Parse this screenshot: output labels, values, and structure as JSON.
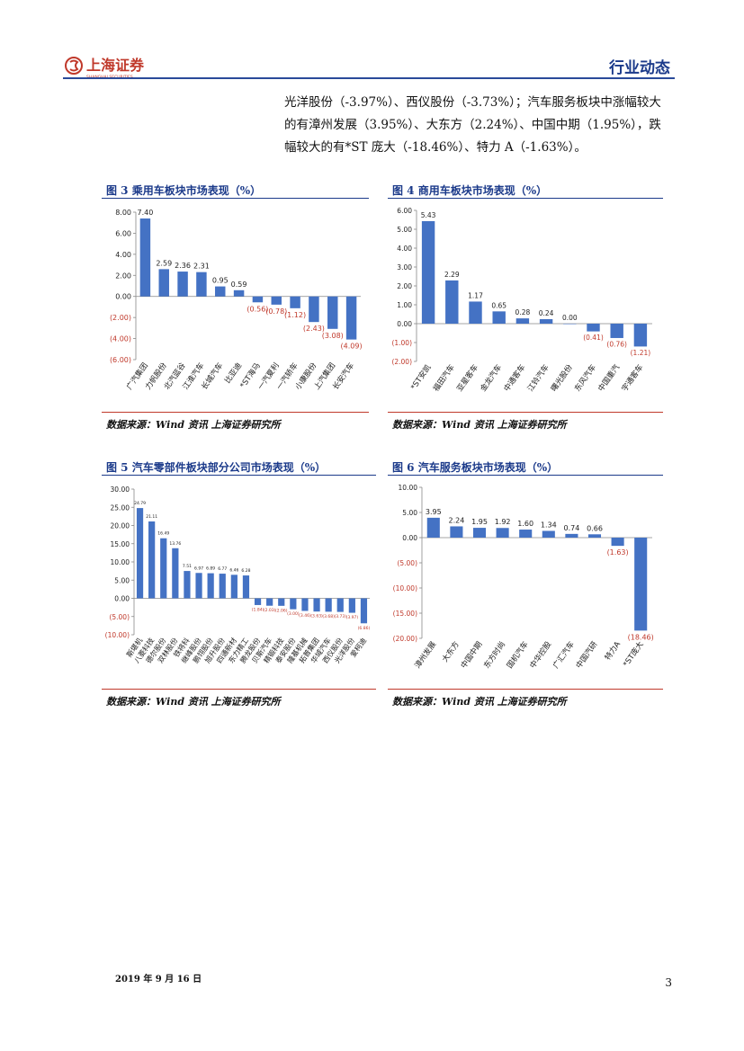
{
  "header": {
    "title": "行业动态",
    "logo_text": "上海证券",
    "logo_sub": "SHANGHAI SECURITIES"
  },
  "intro": {
    "lines": [
      "光洋股份（-3.97%）、西仪股份（-3.73%）；汽车服务板块中涨幅较大",
      "的有漳州发展（3.95%）、大东方（2.24%）、中国中期（1.95%），跌",
      "幅较大的有*ST 庞大（-18.46%）、特力 A（-1.63%）。"
    ]
  },
  "colors": {
    "bar": "#4472c4",
    "negative_label": "#c0392b",
    "title": "#1b3a8a"
  },
  "chart_data": [
    {
      "type": "bar",
      "title": "图 3 乘用车板块市场表现（%）",
      "source": "数据来源：Wind 资讯 上海证券研究所",
      "categories": [
        "广汽集团",
        "力帆股份",
        "北汽蓝谷",
        "江淮汽车",
        "长城汽车",
        "比亚迪",
        "*ST海马",
        "一汽夏利",
        "一汽轿车",
        "小康股份",
        "上汽集团",
        "长安汽车"
      ],
      "values": [
        7.4,
        2.59,
        2.36,
        2.31,
        0.95,
        0.59,
        -0.56,
        -0.78,
        -1.12,
        -2.43,
        -3.08,
        -4.09
      ],
      "value_labels": [
        "7.40",
        "2.59",
        "2.36",
        "2.31",
        "0.95",
        "0.59",
        "(0.56)",
        "(0.78)",
        "(1.12)",
        "(2.43)",
        "(3.08)",
        "(4.09)"
      ],
      "ylim": [
        -6,
        8
      ],
      "yticks": [
        8,
        6,
        4,
        2,
        0,
        -2,
        -4,
        -6
      ],
      "ytick_labels": [
        "8.00",
        "6.00",
        "4.00",
        "2.00",
        "0.00",
        "(2.00)",
        "(4.00)",
        "(6.00)"
      ]
    },
    {
      "type": "bar",
      "title": "图 4 商用车板块市场表现（%）",
      "source": "数据来源：Wind 资讯 上海证券研究所",
      "categories": [
        "*ST安凯",
        "福田汽车",
        "亚星客车",
        "金龙汽车",
        "中通客车",
        "江铃汽车",
        "曙光股份",
        "东风汽车",
        "中国重汽",
        "宇通客车"
      ],
      "values": [
        5.43,
        2.29,
        1.17,
        0.65,
        0.28,
        0.24,
        0.0,
        -0.41,
        -0.76,
        -1.21
      ],
      "value_labels": [
        "5.43",
        "2.29",
        "1.17",
        "0.65",
        "0.28",
        "0.24",
        "0.00",
        "(0.41)",
        "(0.76)",
        "(1.21)"
      ],
      "ylim": [
        -2,
        6
      ],
      "yticks": [
        6,
        5,
        4,
        3,
        2,
        1,
        0,
        -1,
        -2
      ],
      "ytick_labels": [
        "6.00",
        "5.00",
        "4.00",
        "3.00",
        "2.00",
        "1.00",
        "0.00",
        "(1.00)",
        "(2.00)"
      ]
    },
    {
      "type": "bar",
      "title": "图 5 汽车零部件板块部分公司市场表现（%）",
      "source": "数据来源：Wind 资讯 上海证券研究所",
      "categories": [
        "斯堪机",
        "八菱科技",
        "德尔股份",
        "双林股份",
        "铁将科",
        "继峰股份",
        "鹏翎股份",
        "旭升股份",
        "四通新材",
        "东力精工",
        "腾龙股份",
        "贝斯汽车",
        "精锻科技",
        "泰安股份",
        "隆基机械",
        "拓普集团",
        "华域汽车",
        "西仪股份",
        "光洋股份",
        "爱柯迪"
      ],
      "values": [
        24.79,
        21.11,
        16.49,
        13.76,
        7.51,
        6.97,
        6.89,
        6.77,
        6.46,
        6.28,
        -1.84,
        -2.03,
        -2.06,
        -3.0,
        -3.46,
        -3.63,
        -3.68,
        -3.73,
        -3.97,
        -6.86
      ],
      "value_labels": [
        "24.79",
        "21.11",
        "16.49",
        "13.76",
        "7.51",
        "6.97",
        "6.89",
        "6.77",
        "6.46",
        "6.28",
        "(1.84)",
        "(2.03)",
        "(2.06)",
        "(3.00)",
        "(3.46)",
        "(3.63)",
        "(3.68)",
        "(3.73)",
        "(3.97)",
        "(6.86)"
      ],
      "ylim": [
        -10,
        30
      ],
      "yticks": [
        30,
        25,
        20,
        15,
        10,
        5,
        0,
        -5,
        -10
      ],
      "ytick_labels": [
        "30.00",
        "25.00",
        "20.00",
        "15.00",
        "10.00",
        "5.00",
        "0.00",
        "(5.00)",
        "(10.00)"
      ]
    },
    {
      "type": "bar",
      "title": "图 6 汽车服务板块市场表现（%）",
      "source": "数据来源：Wind 资讯 上海证券研究所",
      "categories": [
        "漳州发展",
        "大东方",
        "中国中期",
        "东方时尚",
        "国机汽车",
        "中华控股",
        "广汇汽车",
        "中国汽研",
        "特力A",
        "*ST庞大"
      ],
      "values": [
        3.95,
        2.24,
        1.95,
        1.92,
        1.6,
        1.34,
        0.74,
        0.66,
        -1.63,
        -18.46
      ],
      "value_labels": [
        "3.95",
        "2.24",
        "1.95",
        "1.92",
        "1.60",
        "1.34",
        "0.74",
        "0.66",
        "(1.63)",
        "(18.46)"
      ],
      "ylim": [
        -20,
        10
      ],
      "yticks": [
        10,
        5,
        0,
        -5,
        -10,
        -15,
        -20
      ],
      "ytick_labels": [
        "10.00",
        "5.00",
        "0.00",
        "(5.00)",
        "(10.00)",
        "(15.00)",
        "(20.00)"
      ]
    }
  ],
  "footer": {
    "date": "2019 年 9 月 16 日",
    "page": "3"
  }
}
